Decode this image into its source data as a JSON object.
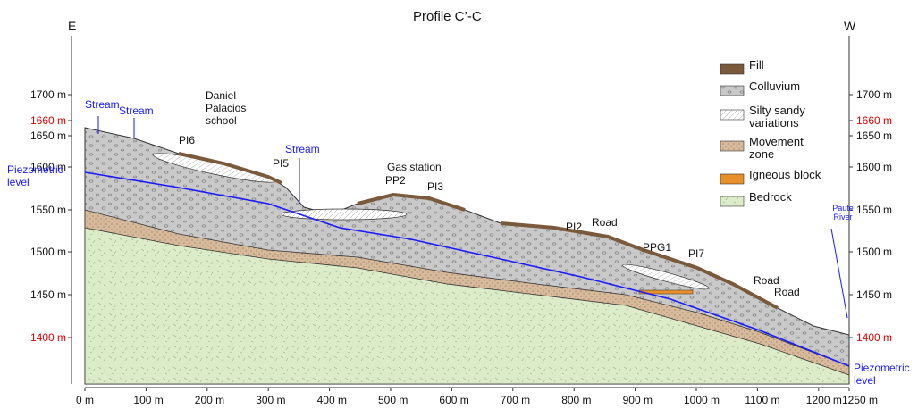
{
  "title": "Profile C’-C",
  "left_end": "E",
  "right_end": "W",
  "elevation_labels": [
    "1700 m",
    "1660 m",
    "1650 m",
    "1600 m",
    "1550 m",
    "1500 m",
    "1450 m",
    "1400 m"
  ],
  "distance_labels": [
    "0 m",
    "100 m",
    "200 m",
    "300 m",
    "400 m",
    "500 m",
    "600 m",
    "700 m",
    "800 m",
    "900 m",
    "1000 m",
    "1100 m",
    "1200 m",
    "1250 m"
  ],
  "legend": [
    "Fill",
    "Colluvium",
    "Silty sandy variations",
    "Movement zone",
    "Igneous block",
    "Bedrock"
  ],
  "annotations": [
    "Stream",
    "Stream",
    "Daniel Palacios school",
    "PI6",
    "PI5",
    "Stream",
    "Piezometric level",
    "Gas station",
    "PP2",
    "PI3",
    "PI2",
    "Road",
    "PPG1",
    "PI7",
    "Road",
    "Road",
    "Paute River",
    "Piezometric level"
  ]
}
